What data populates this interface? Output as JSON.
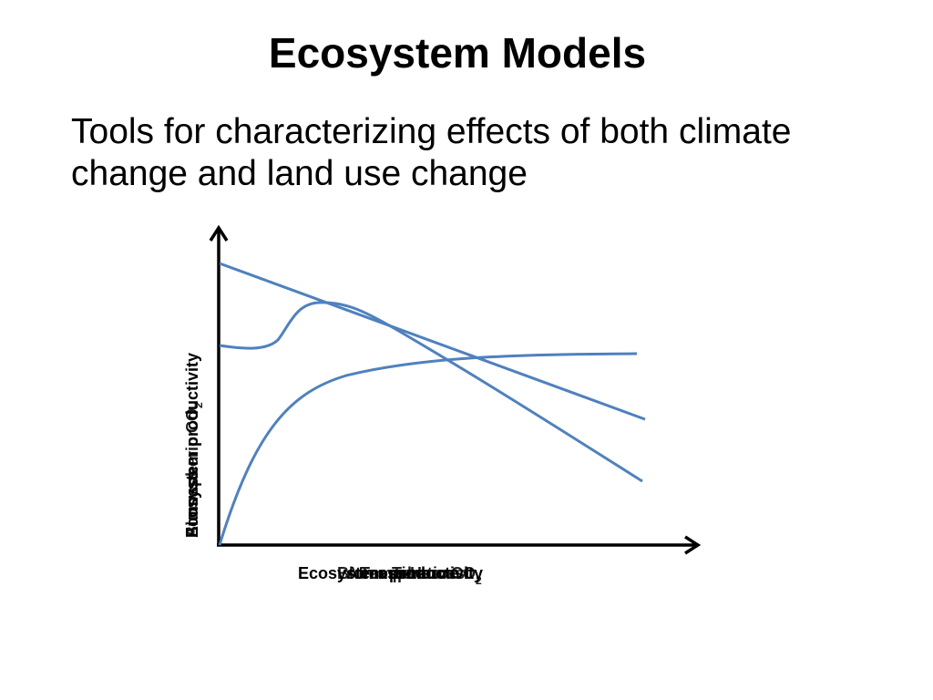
{
  "slide": {
    "title": "Ecosystem Models",
    "body": "Tools for characterizing effects of both climate change and land use change"
  },
  "diagram": {
    "x_labels": [
      {
        "text": "Ecosystem productivity"
      },
      {
        "text": "Time"
      },
      {
        "text": "Atmospheric CO",
        "subscript": "2"
      },
      {
        "text": "Biomass Harvest"
      },
      {
        "text": "Temperature"
      }
    ],
    "y_labels": [
      {
        "text": "Ecosystem productivity"
      },
      {
        "text": "Atmospheric CO",
        "subscript": "2"
      },
      {
        "text": "Biomass",
        "subscript": ""
      }
    ],
    "colors": {
      "curve": "#4f81bd",
      "axis": "#000000"
    }
  }
}
